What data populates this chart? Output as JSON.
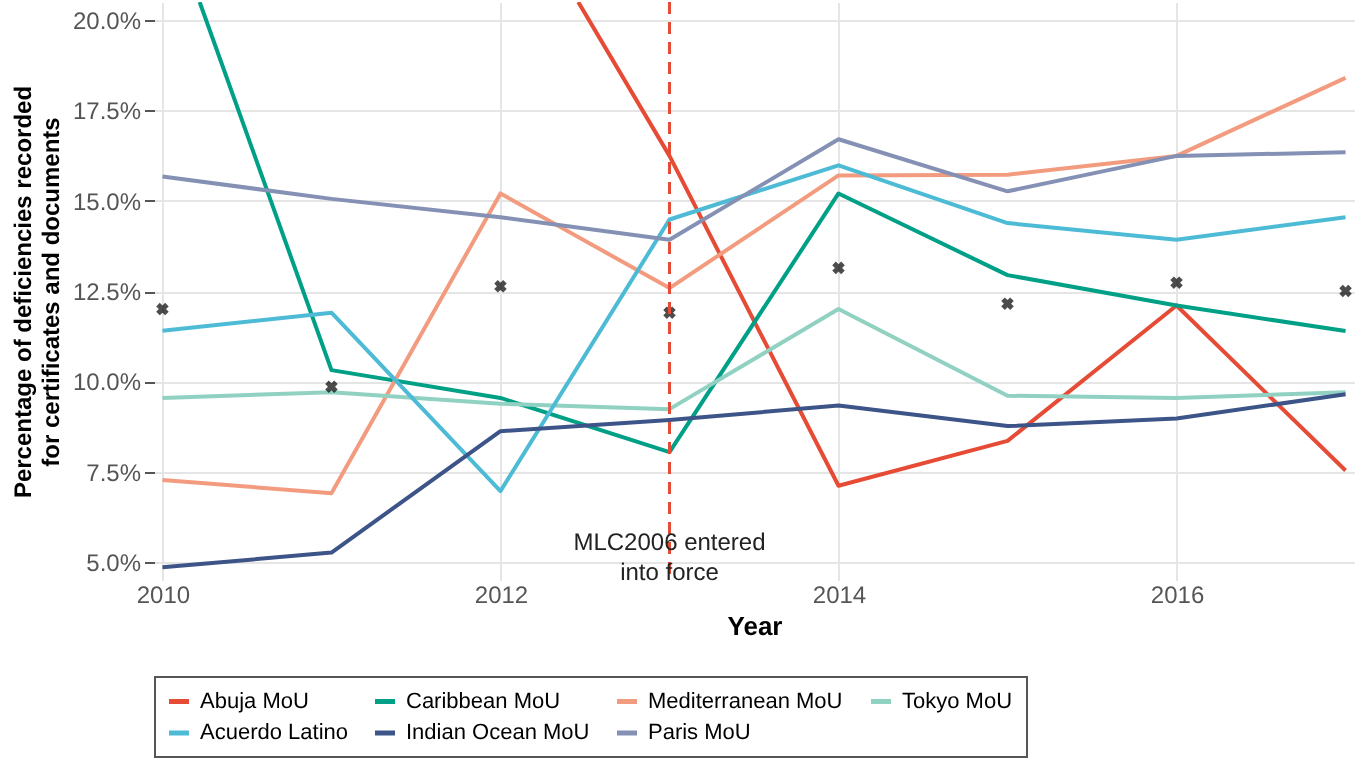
{
  "chart_data": {
    "type": "line",
    "xlabel": "Year",
    "ylabel": "Percentage of deficiencies recorded for certificates and documents",
    "x": [
      2010,
      2011,
      2012,
      2013,
      2014,
      2015,
      2016,
      2017
    ],
    "series": [
      {
        "name": "Abuja MoU",
        "color": "#e64b35",
        "x": [
          2012.46,
          2013,
          2014,
          2015,
          2016,
          2017
        ],
        "values": [
          20.5,
          16.24,
          7.11,
          8.35,
          12.1,
          7.53
        ]
      },
      {
        "name": "Caribbean MoU",
        "color": "#00a087",
        "x": [
          2010.22,
          2011,
          2012,
          2013,
          2014,
          2015,
          2016,
          2017
        ],
        "values": [
          20.5,
          10.31,
          9.54,
          8.04,
          15.2,
          12.94,
          12.1,
          11.39
        ]
      },
      {
        "name": "Mediterranean MoU",
        "color": "#f39b7f",
        "values": [
          7.27,
          6.9,
          15.2,
          12.58,
          15.7,
          15.72,
          16.24,
          18.4
        ]
      },
      {
        "name": "Tokyo MoU",
        "color": "#91d1c2",
        "values": [
          9.54,
          9.7,
          9.38,
          9.23,
          12.0,
          9.6,
          9.54,
          9.7
        ]
      },
      {
        "name": "Acuerdo Latino",
        "color": "#4dbbd5",
        "values": [
          11.4,
          11.9,
          6.96,
          14.48,
          15.98,
          14.38,
          13.92,
          14.54
        ]
      },
      {
        "name": "Indian Ocean MoU",
        "color": "#3c5488",
        "values": [
          4.85,
          5.26,
          8.62,
          8.93,
          9.33,
          8.76,
          8.97,
          9.64
        ]
      },
      {
        "name": "Paris MoU",
        "color": "#8491b4",
        "values": [
          15.67,
          15.05,
          14.54,
          13.92,
          16.7,
          15.26,
          16.24,
          16.34
        ]
      },
      {
        "type": "scatter",
        "color": "#000000",
        "marker": "cross",
        "values": [
          12.0,
          9.85,
          12.63,
          11.9,
          13.14,
          12.15,
          12.73,
          12.5
        ]
      }
    ],
    "xlim": [
      2009.95,
      2017.05
    ],
    "xticks": [
      2010,
      2012,
      2014,
      2016
    ],
    "ylim": [
      4.5,
      20.5
    ],
    "yticks": [
      {
        "value": 5,
        "label": "5.0%"
      },
      {
        "value": 7.5,
        "label": "7.5%"
      },
      {
        "value": 10,
        "label": "10.0%"
      },
      {
        "value": 12.5,
        "label": "12.5%"
      },
      {
        "value": 15,
        "label": "15.0%"
      },
      {
        "value": 17.5,
        "label": "17.5%"
      },
      {
        "value": 20,
        "label": "20.0%"
      }
    ],
    "ref_lines": [
      {
        "axis": "x",
        "value": 2013,
        "label": "MLC2006 entered into force",
        "color": "#e64b35",
        "line_style": "dashed"
      }
    ],
    "grid": true,
    "legend": "bottom",
    "line_style": "solid"
  }
}
